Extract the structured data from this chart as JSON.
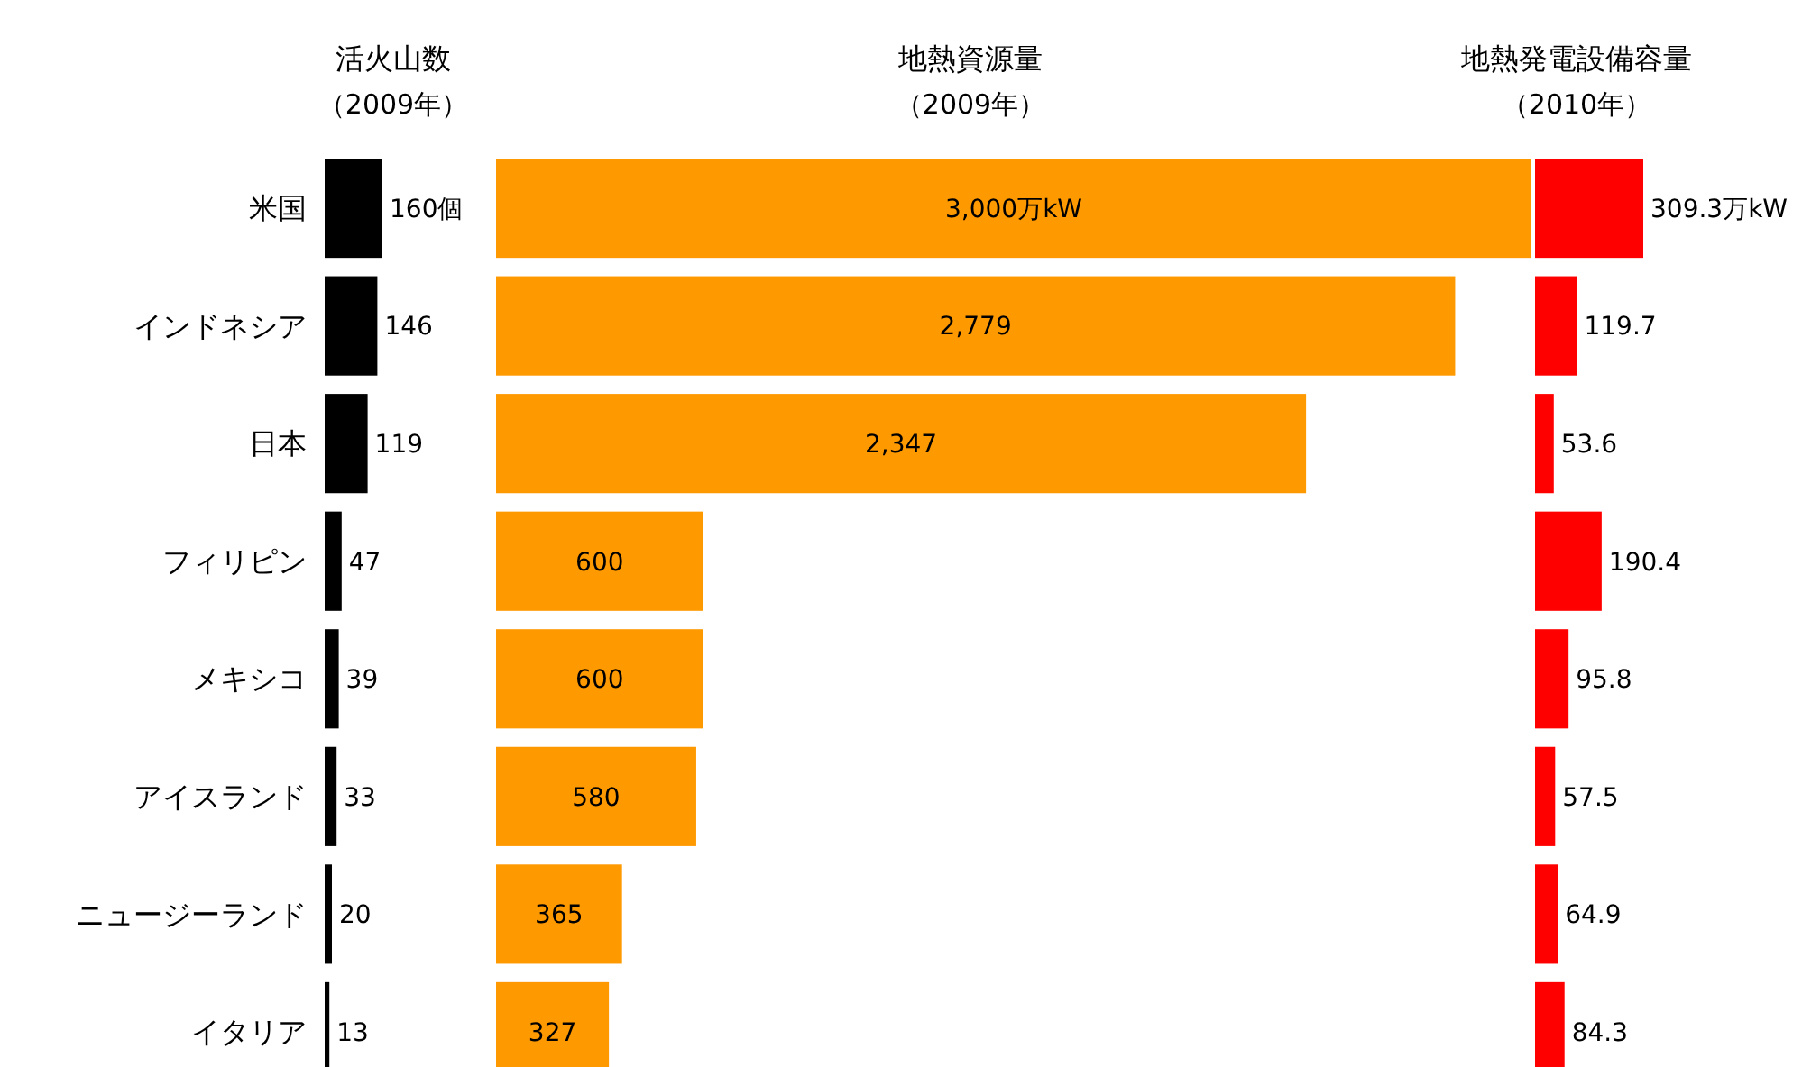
{
  "chart_data": [
    {
      "type": "bar",
      "orientation": "horizontal",
      "title": "活火山数",
      "subtitle": "（2009年）",
      "categories": [
        "米国",
        "インドネシア",
        "日本",
        "フィリピン",
        "メキシコ",
        "アイスランド",
        "ニュージーランド",
        "イタリア"
      ],
      "values": [
        160,
        146,
        119,
        47,
        39,
        33,
        20,
        13
      ],
      "value_labels": [
        "160個",
        "146",
        "119",
        "47",
        "39",
        "33",
        "20",
        "13"
      ],
      "color": "#000000",
      "tick_labels": "y"
    },
    {
      "type": "bar",
      "orientation": "horizontal",
      "title": "地熱資源量",
      "subtitle": "（2009年）",
      "categories": [
        null,
        null,
        null,
        null,
        null,
        null,
        null,
        null
      ],
      "values": [
        3000,
        2779,
        2347,
        600,
        600,
        580,
        365,
        327
      ],
      "value_labels": [
        "3,000万kW",
        "2,779",
        "2,347",
        "600",
        "600",
        "580",
        "365",
        "327"
      ],
      "color": "#ff9900"
    },
    {
      "type": "bar",
      "orientation": "horizontal",
      "title": "地熱発電設備容量",
      "subtitle": "（2010年）",
      "categories": [
        null,
        null,
        null,
        null,
        null,
        null,
        null,
        null
      ],
      "values": [
        309.3,
        119.7,
        53.6,
        190.4,
        95.8,
        57.5,
        64.9,
        84.3
      ],
      "value_labels": [
        "309.3万kW",
        "119.7",
        "53.6",
        "190.4",
        "95.8",
        "57.5",
        "64.9",
        "84.3"
      ],
      "color": "#ff0000"
    }
  ]
}
